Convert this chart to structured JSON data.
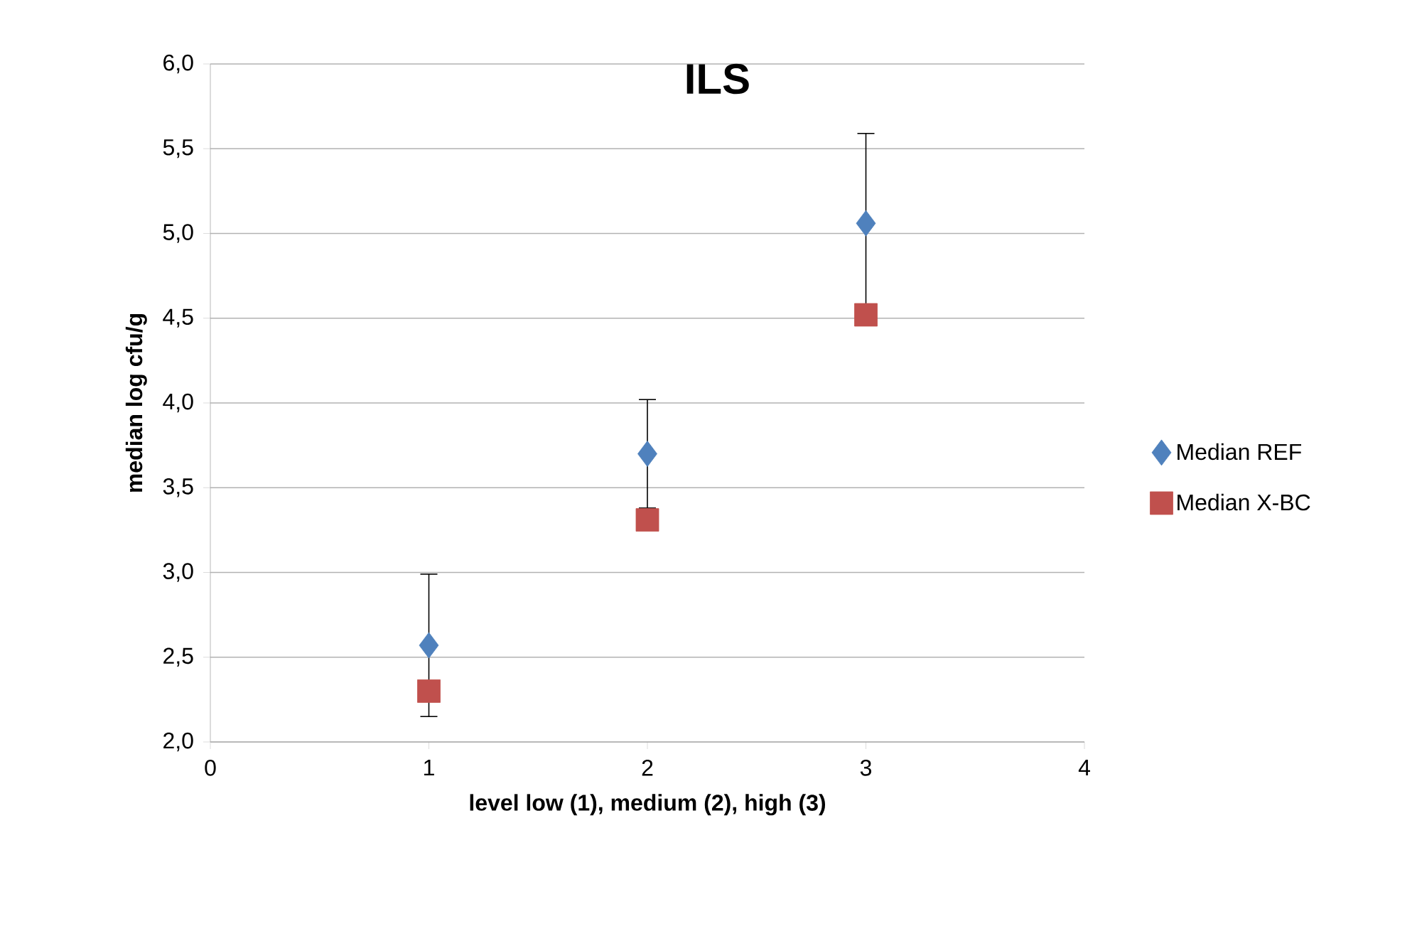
{
  "chart_data": {
    "type": "scatter",
    "title": "ILS",
    "xlabel": "level low (1), medium (2), high (3)",
    "ylabel": "median log cfu/g",
    "x": [
      1,
      2,
      3
    ],
    "series": [
      {
        "name": "Median REF",
        "color": "#4f81bd",
        "marker": "diamond",
        "values": [
          2.57,
          3.7,
          5.06
        ],
        "errors": [
          0.42,
          0.32,
          0.53
        ]
      },
      {
        "name": "Median X-BC",
        "color": "#c0504d",
        "marker": "square",
        "values": [
          2.3,
          3.31,
          4.52
        ]
      }
    ],
    "xlim": [
      0,
      4
    ],
    "xticks": [
      0,
      1,
      2,
      3,
      4
    ],
    "ylim": [
      2.0,
      6.0
    ],
    "yticks": [
      {
        "value": 2.0,
        "label": "2,0"
      },
      {
        "value": 2.5,
        "label": "2,5"
      },
      {
        "value": 3.0,
        "label": "3,0"
      },
      {
        "value": 3.5,
        "label": "3,5"
      },
      {
        "value": 4.0,
        "label": "4,0"
      },
      {
        "value": 4.5,
        "label": "4,5"
      },
      {
        "value": 5.0,
        "label": "5,0"
      },
      {
        "value": 5.5,
        "label": "5,5"
      },
      {
        "value": 6.0,
        "label": "6,0"
      }
    ],
    "grid": "y",
    "legend": "right"
  }
}
